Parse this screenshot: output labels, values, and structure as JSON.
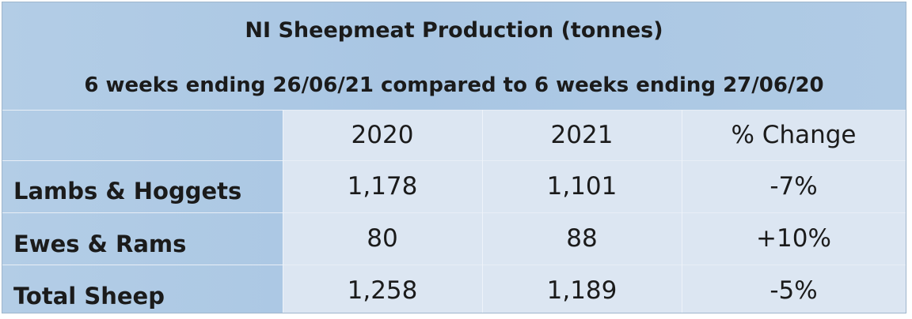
{
  "chart_data": {
    "type": "table",
    "title": "NI Sheepmeat Production (tonnes)",
    "subtitle": "6 weeks ending 26/06/21 compared to 6 weeks ending 27/06/20",
    "columns": [
      "2020",
      "2021",
      "% Change"
    ],
    "rows": [
      {
        "label": "Lambs & Hoggets",
        "values": [
          "1,178",
          "1,101",
          "-7%"
        ]
      },
      {
        "label": "Ewes & Rams",
        "values": [
          "80",
          "88",
          "+10%"
        ]
      },
      {
        "label": "Total Sheep",
        "values": [
          "1,258",
          "1,189",
          "-5%"
        ]
      }
    ]
  },
  "colors": {
    "header_background": "#b0cbe5",
    "data_background": "#dce6f2",
    "text": "#1b1b1b"
  }
}
